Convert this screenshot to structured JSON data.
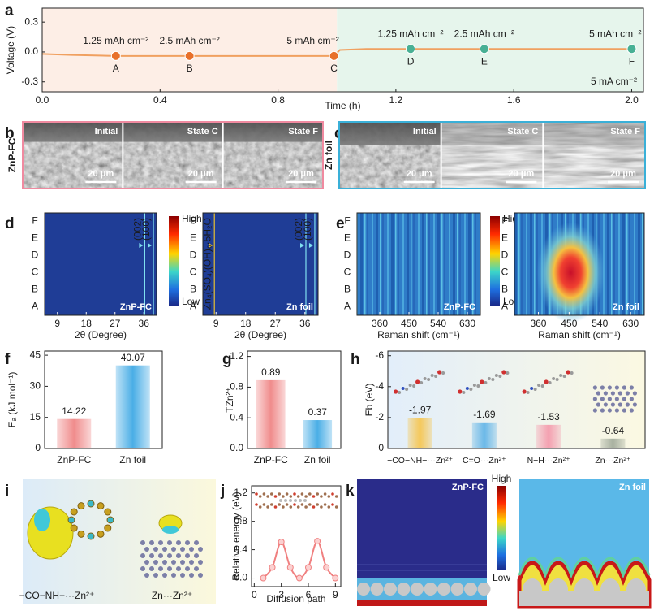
{
  "panel_labels": [
    "a",
    "b",
    "c",
    "d",
    "e",
    "f",
    "g",
    "h",
    "i",
    "j",
    "k"
  ],
  "chart_data": [
    {
      "type": "line",
      "ylabel": "Voltage (V)",
      "xlabel": "Time (h)",
      "xlim": [
        0,
        2.04
      ],
      "ylim": [
        -0.4,
        0.44
      ],
      "xticks": [
        {
          "value": 0,
          "label": "0.0"
        },
        0.4,
        0.8,
        1.2,
        1.6,
        {
          "value": 2,
          "label": "2.0"
        }
      ],
      "yticks": [
        -0.3,
        {
          "value": 0,
          "label": "0.0"
        },
        0.3
      ],
      "regions": [
        {
          "xlim": [
            0,
            1
          ],
          "color": "#fdeee6"
        },
        {
          "xlim": [
            1,
            2.04
          ],
          "color": "#e6f5ec"
        }
      ],
      "color": "#f0a060",
      "x": [
        0,
        0.1,
        0.25,
        0.5,
        0.75,
        0.99,
        1.01,
        1.1,
        1.25,
        1.5,
        1.75,
        2.0
      ],
      "values": [
        -0.02,
        -0.03,
        -0.04,
        -0.04,
        -0.04,
        -0.04,
        0.02,
        0.03,
        0.03,
        0.03,
        0.03,
        0.03
      ],
      "markers": [
        {
          "label": "A",
          "x": 0.25,
          "value": -0.04,
          "color": "#e8702a",
          "annotation": "1.25 mAh cm⁻²"
        },
        {
          "label": "B",
          "x": 0.5,
          "value": -0.04,
          "color": "#e8702a",
          "annotation": "2.5 mAh cm⁻²"
        },
        {
          "label": "C",
          "x": 0.99,
          "value": -0.04,
          "color": "#e8702a",
          "annotation": "5 mAh cm⁻²"
        },
        {
          "label": "D",
          "x": 1.25,
          "value": 0.03,
          "color": "#48b094",
          "annotation": "1.25 mAh cm⁻²"
        },
        {
          "label": "E",
          "x": 1.5,
          "value": 0.03,
          "color": "#48b094",
          "annotation": "2.5 mAh cm⁻²"
        },
        {
          "label": "F",
          "x": 2.0,
          "value": 0.03,
          "color": "#48b094",
          "annotation": "5 mAh cm⁻²"
        }
      ],
      "note": "5 mA cm⁻²"
    },
    {
      "type": "heatmap",
      "label": "ZnP-FC",
      "xlabel": "2θ (Degree)",
      "categories": [
        "A",
        "B",
        "C",
        "D",
        "E",
        "F"
      ],
      "category_colors": [
        "#e8702a",
        "#e8702a",
        "#e8702a",
        "#3aa68a",
        "#3aa68a",
        "#3aa68a"
      ],
      "xlim": [
        5,
        40
      ],
      "xticks": [
        9,
        18,
        27,
        36
      ],
      "color": "#1f3d96",
      "peaks": [
        {
          "x": 36.3,
          "label": "(002)",
          "color": "#7fe0f0"
        },
        {
          "x": 39,
          "label": "(100)",
          "color": "#7fe0f0"
        }
      ],
      "colorbar": [
        "High",
        "Low"
      ]
    },
    {
      "type": "heatmap",
      "label": "Zn foil",
      "xlabel": "2θ (Degree)",
      "categories": [
        "A",
        "B",
        "C",
        "D",
        "E",
        "F"
      ],
      "category_colors": [
        "#e8702a",
        "#e8702a",
        "#e8702a",
        "#3aa68a",
        "#3aa68a",
        "#3aa68a"
      ],
      "xlim": [
        5,
        40
      ],
      "xticks": [
        9,
        18,
        27,
        36
      ],
      "color": "#1f3d96",
      "peaks": [
        {
          "x": 8.5,
          "label": "Zn₄(SO₄)(OH)₆·5H₂O",
          "color": "#e8c030"
        },
        {
          "x": 36.3,
          "label": "(002)",
          "color": "#7fe0f0"
        },
        {
          "x": 39,
          "label": "(100)",
          "color": "#7fe0f0"
        }
      ]
    },
    {
      "type": "heatmap",
      "label": "ZnP-FC",
      "xlabel": "Raman shift (cm⁻¹)",
      "categories": [
        "A",
        "B",
        "C",
        "D",
        "E",
        "F"
      ],
      "category_colors": [
        "#e8702a",
        "#e8702a",
        "#e8702a",
        "#3aa68a",
        "#3aa68a",
        "#3aa68a"
      ],
      "xlim": [
        290,
        670
      ],
      "xticks": [
        360,
        450,
        540,
        630
      ],
      "color": "#2f7cc8",
      "colorbar": [
        "High",
        "Low"
      ]
    },
    {
      "type": "heatmap",
      "label": "Zn foil",
      "xlabel": "Raman shift (cm⁻¹)",
      "categories": [
        "A",
        "B",
        "C",
        "D",
        "E",
        "F"
      ],
      "category_colors": [
        "#e8702a",
        "#e8702a",
        "#e8702a",
        "#3aa68a",
        "#3aa68a",
        "#3aa68a"
      ],
      "xlim": [
        290,
        670
      ],
      "xticks": [
        360,
        450,
        540,
        630
      ],
      "color": "#2f7cc8",
      "hotspot_x": 455,
      "hotspot_category": "C"
    },
    {
      "type": "bar",
      "ylabel": "Eₐ (kJ mol⁻¹)",
      "categories": [
        "ZnP-FC",
        "Zn foil"
      ],
      "values": [
        14.22,
        40.07
      ],
      "colors": [
        "#f08c8c",
        "#4aaee6"
      ],
      "label_colors": [
        "#e0605a",
        "#2a9ad8"
      ],
      "ylim": [
        0,
        47
      ],
      "yticks": [
        0,
        15,
        30,
        45
      ]
    },
    {
      "type": "bar",
      "ylabel": "TZn²⁺",
      "categories": [
        "ZnP-FC",
        "Zn foil"
      ],
      "values": [
        0.89,
        0.37
      ],
      "colors": [
        "#f08c8c",
        "#4aaee6"
      ],
      "label_colors": [
        "#e0605a",
        "#2a9ad8"
      ],
      "ylim": [
        0,
        1.27
      ],
      "yticks": [
        {
          "value": 0,
          "label": "0.0"
        },
        0.4,
        0.8,
        1.2
      ]
    },
    {
      "type": "bar",
      "ylabel": "Eb (eV)",
      "categories": [
        "−CO−NH−···Zn²⁺",
        "C=O···Zn²⁺",
        "N−H···Zn²⁺",
        "Zn···Zn²⁺"
      ],
      "values": [
        -1.97,
        -1.69,
        -1.53,
        -0.64
      ],
      "colors": [
        "#f5c85a",
        "#6ab8e8",
        "#f4a0b0",
        "#a8b0a0"
      ],
      "label_colors": [
        "#e8602a",
        "#2a8ad0",
        "#e03040",
        "#444444"
      ],
      "ylim": [
        0,
        -6.3
      ],
      "yticks": [
        0,
        -2,
        -4,
        -6
      ]
    },
    {
      "type": "line",
      "ylabel": "Relative energy (eV)",
      "xlabel": "Diffusion path",
      "xlim": [
        -0.3,
        9.6
      ],
      "ylim": [
        -0.12,
        1.3
      ],
      "xticks": [
        0,
        3,
        6,
        9
      ],
      "yticks": [
        {
          "value": 0,
          "label": "0.0"
        },
        0.4,
        0.8,
        1.2
      ],
      "color": "#f08080",
      "x": [
        1,
        2,
        3,
        4,
        5,
        6,
        7,
        8,
        9
      ],
      "values": [
        0,
        0.15,
        0.51,
        0.15,
        0,
        0.15,
        0.52,
        0.15,
        0
      ]
    }
  ],
  "sem": [
    {
      "sample": "ZnP-FC",
      "states": [
        "Initial",
        "State C",
        "State F"
      ],
      "scale_bar": "20 μm"
    },
    {
      "sample": "Zn foil",
      "states": [
        "Initial",
        "State C",
        "State F"
      ],
      "scale_bar": "20 μm"
    }
  ],
  "dft": {
    "labels": [
      "−CO−NH−···Zn²⁺",
      "Zn···Zn²⁺"
    ]
  },
  "simulation": {
    "samples": [
      "ZnP-FC",
      "Zn foil"
    ],
    "colorbar": [
      "High",
      "Low"
    ]
  }
}
